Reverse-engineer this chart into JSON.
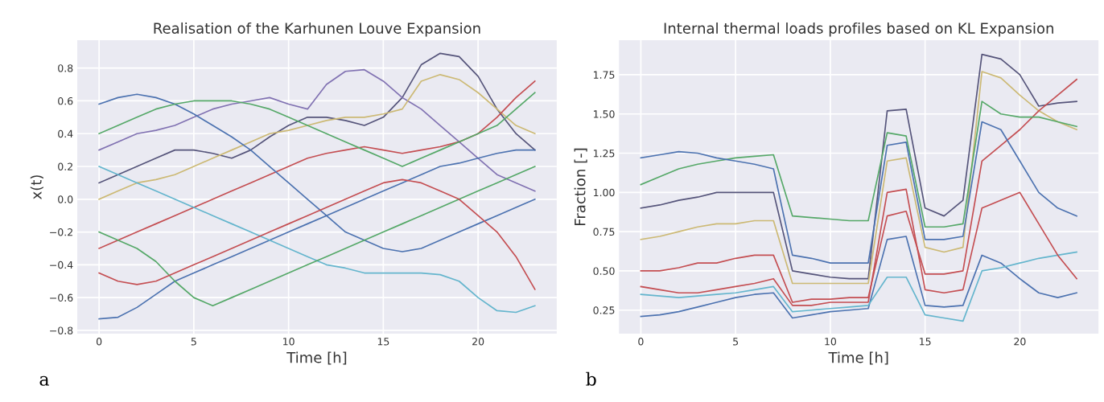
{
  "chart_data": [
    {
      "type": "line",
      "title": "Realisation of the Karhunen Louve Expansion",
      "xlabel": "Time [h]",
      "ylabel": "x(t)",
      "annotations": [
        "a"
      ],
      "x": [
        0,
        1,
        2,
        3,
        4,
        5,
        6,
        7,
        8,
        9,
        10,
        11,
        12,
        13,
        14,
        15,
        16,
        17,
        18,
        19,
        20,
        21,
        22,
        23
      ],
      "xlim": [
        -1.15,
        24.15
      ],
      "xticks": [
        0,
        5,
        10,
        15,
        20
      ],
      "ylim": [
        -0.82,
        0.97
      ],
      "yticks": [
        {
          "value": -0.8,
          "label": "−0.8"
        },
        {
          "value": -0.6,
          "label": "−0.6"
        },
        {
          "value": -0.4,
          "label": "−0.4"
        },
        {
          "value": -0.2,
          "label": "−0.2"
        },
        {
          "value": 0,
          "label": "0.0"
        },
        {
          "value": 0.2,
          "label": "0.2"
        },
        {
          "value": 0.4,
          "label": "0.4"
        },
        {
          "value": 0.6,
          "label": "0.6"
        },
        {
          "value": 0.8,
          "label": "0.8"
        }
      ],
      "grid": true,
      "line_style": "solid",
      "marker": "none",
      "series": [
        {
          "color": "#55547a",
          "values": [
            0.1,
            0.15,
            0.2,
            0.25,
            0.3,
            0.3,
            0.28,
            0.25,
            0.3,
            0.38,
            0.45,
            0.5,
            0.5,
            0.48,
            0.45,
            0.5,
            0.62,
            0.82,
            0.89,
            0.87,
            0.75,
            0.55,
            0.4,
            0.3
          ]
        },
        {
          "color": "#8172b2",
          "values": [
            0.3,
            0.35,
            0.4,
            0.42,
            0.45,
            0.5,
            0.55,
            0.58,
            0.6,
            0.62,
            0.58,
            0.55,
            0.7,
            0.78,
            0.79,
            0.72,
            0.62,
            0.55,
            0.45,
            0.35,
            0.25,
            0.15,
            0.1,
            0.05
          ]
        },
        {
          "color": "#ccb974",
          "values": [
            0.0,
            0.05,
            0.1,
            0.12,
            0.15,
            0.2,
            0.25,
            0.3,
            0.35,
            0.4,
            0.42,
            0.45,
            0.48,
            0.5,
            0.5,
            0.52,
            0.55,
            0.72,
            0.76,
            0.73,
            0.65,
            0.55,
            0.45,
            0.4
          ]
        },
        {
          "color": "#c44e52",
          "values": [
            -0.3,
            -0.25,
            -0.2,
            -0.15,
            -0.1,
            -0.05,
            0.0,
            0.05,
            0.1,
            0.15,
            0.2,
            0.25,
            0.28,
            0.3,
            0.32,
            0.3,
            0.28,
            0.3,
            0.32,
            0.35,
            0.4,
            0.5,
            0.62,
            0.72
          ]
        },
        {
          "color": "#4c72b0",
          "values": [
            -0.73,
            -0.72,
            -0.66,
            -0.58,
            -0.5,
            -0.45,
            -0.4,
            -0.35,
            -0.3,
            -0.25,
            -0.2,
            -0.15,
            -0.1,
            -0.05,
            0.0,
            0.05,
            0.1,
            0.15,
            0.2,
            0.22,
            0.25,
            0.28,
            0.3,
            0.3
          ]
        },
        {
          "color": "#64b5cd",
          "values": [
            0.2,
            0.15,
            0.1,
            0.05,
            0.0,
            -0.05,
            -0.1,
            -0.15,
            -0.2,
            -0.25,
            -0.3,
            -0.35,
            -0.4,
            -0.42,
            -0.45,
            -0.45,
            -0.45,
            -0.45,
            -0.46,
            -0.5,
            -0.6,
            -0.68,
            -0.69,
            -0.65
          ]
        },
        {
          "color": "#4c72b0",
          "values": [
            0.58,
            0.62,
            0.64,
            0.62,
            0.58,
            0.52,
            0.45,
            0.38,
            0.3,
            0.2,
            0.1,
            0.0,
            -0.1,
            -0.2,
            -0.25,
            -0.3,
            -0.32,
            -0.3,
            -0.25,
            -0.2,
            -0.15,
            -0.1,
            -0.05,
            0.0
          ]
        },
        {
          "color": "#55a868",
          "values": [
            -0.2,
            -0.25,
            -0.3,
            -0.38,
            -0.5,
            -0.6,
            -0.65,
            -0.6,
            -0.55,
            -0.5,
            -0.45,
            -0.4,
            -0.35,
            -0.3,
            -0.25,
            -0.2,
            -0.15,
            -0.1,
            -0.05,
            0.0,
            0.05,
            0.1,
            0.15,
            0.2
          ]
        },
        {
          "color": "#55a868",
          "values": [
            0.4,
            0.45,
            0.5,
            0.55,
            0.58,
            0.6,
            0.6,
            0.6,
            0.58,
            0.55,
            0.5,
            0.45,
            0.4,
            0.35,
            0.3,
            0.25,
            0.2,
            0.25,
            0.3,
            0.35,
            0.4,
            0.45,
            0.55,
            0.65
          ]
        },
        {
          "color": "#c44e52",
          "values": [
            -0.45,
            -0.5,
            -0.52,
            -0.5,
            -0.45,
            -0.4,
            -0.35,
            -0.3,
            -0.25,
            -0.2,
            -0.15,
            -0.1,
            -0.05,
            0.0,
            0.05,
            0.1,
            0.12,
            0.1,
            0.05,
            0.0,
            -0.1,
            -0.2,
            -0.35,
            -0.55
          ]
        }
      ]
    },
    {
      "type": "line",
      "title": "Internal thermal loads profiles based on KL Expansion",
      "xlabel": "Time [h]",
      "ylabel": "Fraction [-]",
      "annotations": [
        "b"
      ],
      "x": [
        0,
        1,
        2,
        3,
        4,
        5,
        6,
        7,
        8,
        9,
        10,
        11,
        12,
        13,
        14,
        15,
        16,
        17,
        18,
        19,
        20,
        21,
        22,
        23
      ],
      "xlim": [
        -1.15,
        24.15
      ],
      "xticks": [
        0,
        5,
        10,
        15,
        20
      ],
      "ylim": [
        0.1,
        1.97
      ],
      "yticks": [
        {
          "value": 0.25,
          "label": "0.25"
        },
        {
          "value": 0.5,
          "label": "0.50"
        },
        {
          "value": 0.75,
          "label": "0.75"
        },
        {
          "value": 1,
          "label": "1.00"
        },
        {
          "value": 1.25,
          "label": "1.25"
        },
        {
          "value": 1.5,
          "label": "1.50"
        },
        {
          "value": 1.75,
          "label": "1.75"
        }
      ],
      "grid": true,
      "line_style": "solid",
      "marker": "none",
      "series": [
        {
          "color": "#55547a",
          "values": [
            0.9,
            0.92,
            0.95,
            0.97,
            1.0,
            1.0,
            1.0,
            1.0,
            0.5,
            0.48,
            0.46,
            0.45,
            0.45,
            1.52,
            1.53,
            0.9,
            0.85,
            0.95,
            1.88,
            1.85,
            1.75,
            1.55,
            1.57,
            1.58
          ]
        },
        {
          "color": "#ccb974",
          "values": [
            0.7,
            0.72,
            0.75,
            0.78,
            0.8,
            0.8,
            0.82,
            0.82,
            0.42,
            0.42,
            0.42,
            0.42,
            0.42,
            1.2,
            1.22,
            0.65,
            0.62,
            0.65,
            1.77,
            1.73,
            1.62,
            1.52,
            1.45,
            1.4
          ]
        },
        {
          "color": "#c44e52",
          "values": [
            0.5,
            0.5,
            0.52,
            0.55,
            0.55,
            0.58,
            0.6,
            0.6,
            0.3,
            0.32,
            0.32,
            0.33,
            0.33,
            0.85,
            0.88,
            0.48,
            0.48,
            0.5,
            1.2,
            1.3,
            1.4,
            1.52,
            1.62,
            1.72
          ]
        },
        {
          "color": "#4c72b0",
          "values": [
            0.21,
            0.22,
            0.24,
            0.27,
            0.3,
            0.33,
            0.35,
            0.36,
            0.2,
            0.22,
            0.24,
            0.25,
            0.26,
            0.7,
            0.72,
            0.28,
            0.27,
            0.28,
            0.6,
            0.55,
            0.45,
            0.36,
            0.33,
            0.36
          ]
        },
        {
          "color": "#55a868",
          "values": [
            1.05,
            1.1,
            1.15,
            1.18,
            1.2,
            1.22,
            1.23,
            1.24,
            0.85,
            0.84,
            0.83,
            0.82,
            0.82,
            1.38,
            1.36,
            0.78,
            0.78,
            0.8,
            1.58,
            1.5,
            1.48,
            1.48,
            1.45,
            1.42
          ]
        },
        {
          "color": "#64b5cd",
          "values": [
            0.35,
            0.34,
            0.33,
            0.34,
            0.35,
            0.36,
            0.38,
            0.4,
            0.24,
            0.25,
            0.26,
            0.27,
            0.28,
            0.46,
            0.46,
            0.22,
            0.2,
            0.18,
            0.5,
            0.52,
            0.55,
            0.58,
            0.6,
            0.62
          ]
        },
        {
          "color": "#4c72b0",
          "values": [
            1.22,
            1.24,
            1.26,
            1.25,
            1.22,
            1.2,
            1.18,
            1.15,
            0.6,
            0.58,
            0.55,
            0.55,
            0.55,
            1.3,
            1.32,
            0.7,
            0.7,
            0.72,
            1.45,
            1.4,
            1.2,
            1.0,
            0.9,
            0.85
          ]
        },
        {
          "color": "#c44e52",
          "values": [
            0.4,
            0.38,
            0.36,
            0.36,
            0.38,
            0.4,
            0.42,
            0.45,
            0.28,
            0.28,
            0.3,
            0.3,
            0.3,
            1.0,
            1.02,
            0.38,
            0.36,
            0.38,
            0.9,
            0.95,
            1.0,
            0.8,
            0.6,
            0.45
          ]
        }
      ]
    }
  ]
}
